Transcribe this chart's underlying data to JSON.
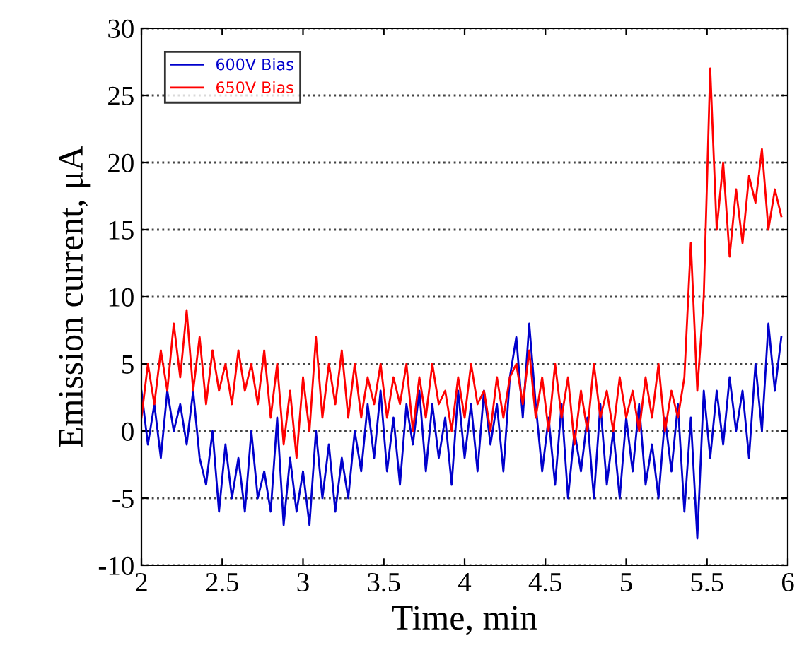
{
  "chart_data": {
    "type": "line",
    "xlabel": "Time, min",
    "ylabel": "Emission current, μA",
    "x": [
      2.0,
      2.04,
      2.08,
      2.12,
      2.16,
      2.2,
      2.24,
      2.28,
      2.32,
      2.36,
      2.4,
      2.44,
      2.48,
      2.52,
      2.56,
      2.6,
      2.64,
      2.68,
      2.72,
      2.76,
      2.8,
      2.84,
      2.88,
      2.92,
      2.96,
      3.0,
      3.04,
      3.08,
      3.12,
      3.16,
      3.2,
      3.24,
      3.28,
      3.32,
      3.36,
      3.4,
      3.44,
      3.48,
      3.52,
      3.56,
      3.6,
      3.64,
      3.68,
      3.72,
      3.76,
      3.8,
      3.84,
      3.88,
      3.92,
      3.96,
      4.0,
      4.04,
      4.08,
      4.12,
      4.16,
      4.2,
      4.24,
      4.28,
      4.32,
      4.36,
      4.4,
      4.44,
      4.48,
      4.52,
      4.56,
      4.6,
      4.64,
      4.68,
      4.72,
      4.76,
      4.8,
      4.84,
      4.88,
      4.92,
      4.96,
      5.0,
      5.04,
      5.08,
      5.12,
      5.16,
      5.2,
      5.24,
      5.28,
      5.32,
      5.36,
      5.4,
      5.44,
      5.48,
      5.52,
      5.56,
      5.6,
      5.64,
      5.68,
      5.72,
      5.76,
      5.8,
      5.84,
      5.88,
      5.92,
      5.96
    ],
    "series": [
      {
        "name": "600V Bias",
        "color": "#0000cc",
        "values": [
          3,
          -1,
          2,
          -2,
          3,
          0,
          2,
          -1,
          3,
          -2,
          -4,
          0,
          -6,
          -1,
          -5,
          -2,
          -6,
          0,
          -5,
          -3,
          -6,
          1,
          -7,
          -2,
          -6,
          -3,
          -7,
          0,
          -5,
          -1,
          -6,
          -2,
          -5,
          0,
          -3,
          2,
          -2,
          3,
          -3,
          1,
          -4,
          2,
          -1,
          3,
          -3,
          2,
          -2,
          1,
          -4,
          3,
          -2,
          2,
          -3,
          3,
          -1,
          2,
          -3,
          4,
          7,
          1,
          8,
          2,
          -3,
          1,
          -4,
          2,
          -5,
          0,
          -3,
          1,
          -5,
          2,
          -4,
          0,
          -5,
          1,
          -3,
          2,
          -4,
          -1,
          -5,
          1,
          -3,
          2,
          -6,
          1,
          -8,
          3,
          -2,
          3,
          -1,
          4,
          0,
          3,
          -2,
          5,
          0,
          8,
          3,
          7
        ]
      },
      {
        "name": "650V Bias",
        "color": "#ff0000",
        "values": [
          1,
          5,
          2,
          6,
          3,
          8,
          4,
          9,
          3,
          7,
          2,
          6,
          3,
          5,
          2,
          6,
          3,
          5,
          2,
          6,
          1,
          5,
          -1,
          3,
          -2,
          4,
          0,
          7,
          1,
          5,
          2,
          6,
          1,
          5,
          1,
          4,
          2,
          5,
          1,
          4,
          2,
          5,
          0,
          4,
          1,
          5,
          2,
          3,
          0,
          4,
          1,
          5,
          2,
          3,
          0,
          4,
          1,
          4,
          5,
          2,
          6,
          1,
          4,
          0,
          5,
          1,
          4,
          -1,
          3,
          0,
          5,
          1,
          3,
          0,
          4,
          1,
          3,
          0,
          4,
          1,
          5,
          0,
          3,
          1,
          4,
          14,
          3,
          10,
          27,
          15,
          20,
          13,
          18,
          14,
          19,
          17,
          21,
          15,
          18,
          16
        ]
      }
    ],
    "xlim": [
      2,
      6
    ],
    "xticks": [
      2,
      2.5,
      3,
      3.5,
      4,
      4.5,
      5,
      5.5,
      6
    ],
    "ylim": [
      -10,
      30
    ],
    "yticks": [
      -10,
      -5,
      0,
      5,
      10,
      15,
      20,
      25,
      30
    ],
    "grid": "y",
    "legend": "top left",
    "line_style": "solid",
    "marker": "none"
  }
}
